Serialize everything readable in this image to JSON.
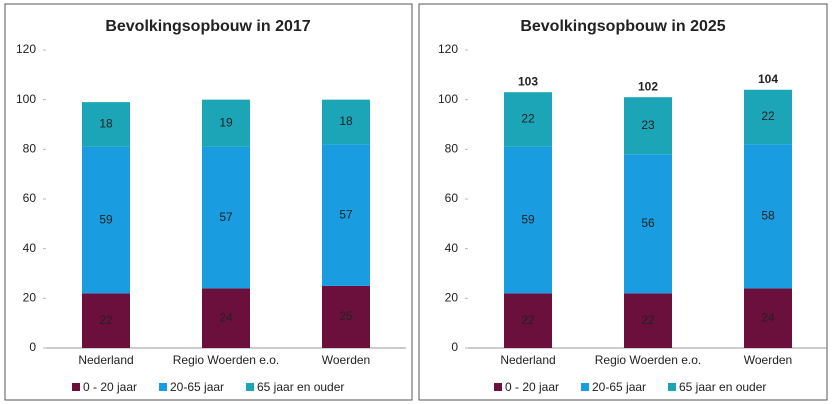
{
  "chart_data": [
    {
      "type": "stacked_bar",
      "title": "Bevolkingsopbouw  in 2017",
      "categories": [
        "Nederland",
        "Regio Woerden e.o.",
        "Woerden"
      ],
      "series": [
        {
          "name": "0 - 20 jaar",
          "color": "#6b0f3d",
          "values": [
            22,
            24,
            25
          ]
        },
        {
          "name": "20-65 jaar",
          "color": "#1a9de0",
          "values": [
            59,
            57,
            57
          ]
        },
        {
          "name": "65 jaar en ouder",
          "color": "#1ba5b6",
          "values": [
            18,
            19,
            18
          ]
        }
      ],
      "ylim": [
        0,
        120
      ],
      "yticks": [
        0,
        20,
        40,
        60,
        80,
        100,
        120
      ],
      "legend": "bottom"
    },
    {
      "type": "stacked_bar",
      "title": "Bevolkingsopbouw  in 2025",
      "categories": [
        "Nederland",
        "Regio Woerden e.o.",
        "Woerden"
      ],
      "series": [
        {
          "name": "0 - 20 jaar",
          "color": "#6b0f3d",
          "values": [
            22,
            22,
            24
          ]
        },
        {
          "name": "20-65 jaar",
          "color": "#1a9de0",
          "values": [
            59,
            56,
            58
          ]
        },
        {
          "name": "65 jaar en ouder",
          "color": "#1ba5b6",
          "values": [
            22,
            23,
            22
          ]
        }
      ],
      "totals": [
        103,
        102,
        104
      ],
      "ylim": [
        0,
        120
      ],
      "yticks": [
        0,
        20,
        40,
        60,
        80,
        100,
        120
      ],
      "legend": "bottom"
    }
  ]
}
